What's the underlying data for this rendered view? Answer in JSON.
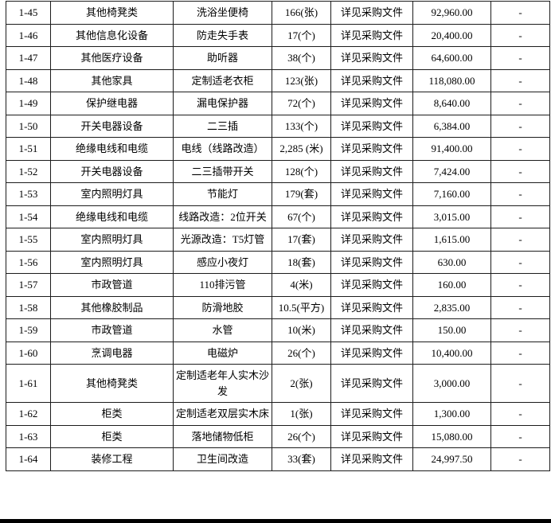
{
  "colors": {
    "background": "#ffffff",
    "grid_border": "#1c1c1c",
    "text": "#000000",
    "bottom_bar": "#000000"
  },
  "table": {
    "column_keys": [
      "id",
      "category",
      "name",
      "qty",
      "note",
      "amount",
      "extra"
    ],
    "rows": [
      {
        "id": "1-45",
        "category": "其他椅凳类",
        "name": "洗浴坐便椅",
        "qty": "166(张)",
        "note": "详见采购文件",
        "amount": "92,960.00",
        "extra": "-"
      },
      {
        "id": "1-46",
        "category": "其他信息化设备",
        "name": "防走失手表",
        "qty": "17(个)",
        "note": "详见采购文件",
        "amount": "20,400.00",
        "extra": "-"
      },
      {
        "id": "1-47",
        "category": "其他医疗设备",
        "name": "助听器",
        "qty": "38(个)",
        "note": "详见采购文件",
        "amount": "64,600.00",
        "extra": "-"
      },
      {
        "id": "1-48",
        "category": "其他家具",
        "name": "定制适老衣柜",
        "qty": "123(张)",
        "note": "详见采购文件",
        "amount": "118,080.00",
        "extra": "-"
      },
      {
        "id": "1-49",
        "category": "保护继电器",
        "name": "漏电保护器",
        "qty": "72(个)",
        "note": "详见采购文件",
        "amount": "8,640.00",
        "extra": "-"
      },
      {
        "id": "1-50",
        "category": "开关电器设备",
        "name": "二三插",
        "qty": "133(个)",
        "note": "详见采购文件",
        "amount": "6,384.00",
        "extra": "-"
      },
      {
        "id": "1-51",
        "category": "绝缘电线和电缆",
        "name": "电线（线路改造）",
        "qty": "2,285 (米)",
        "note": "详见采购文件",
        "amount": "91,400.00",
        "extra": "-"
      },
      {
        "id": "1-52",
        "category": "开关电器设备",
        "name": "二三插带开关",
        "qty": "128(个)",
        "note": "详见采购文件",
        "amount": "7,424.00",
        "extra": "-"
      },
      {
        "id": "1-53",
        "category": "室内照明灯具",
        "name": "节能灯",
        "qty": "179(套)",
        "note": "详见采购文件",
        "amount": "7,160.00",
        "extra": "-"
      },
      {
        "id": "1-54",
        "category": "绝缘电线和电缆",
        "name": "线路改造：2位开关",
        "qty": "67(个)",
        "note": "详见采购文件",
        "amount": "3,015.00",
        "extra": "-"
      },
      {
        "id": "1-55",
        "category": "室内照明灯具",
        "name": "光源改造：T5灯管",
        "qty": "17(套)",
        "note": "详见采购文件",
        "amount": "1,615.00",
        "extra": "-"
      },
      {
        "id": "1-56",
        "category": "室内照明灯具",
        "name": "感应小夜灯",
        "qty": "18(套)",
        "note": "详见采购文件",
        "amount": "630.00",
        "extra": "-"
      },
      {
        "id": "1-57",
        "category": "市政管道",
        "name": "110排污管",
        "qty": "4(米)",
        "note": "详见采购文件",
        "amount": "160.00",
        "extra": "-"
      },
      {
        "id": "1-58",
        "category": "其他橡胶制品",
        "name": "防滑地胶",
        "qty": "10.5(平方)",
        "note": "详见采购文件",
        "amount": "2,835.00",
        "extra": "-"
      },
      {
        "id": "1-59",
        "category": "市政管道",
        "name": "水管",
        "qty": "10(米)",
        "note": "详见采购文件",
        "amount": "150.00",
        "extra": "-"
      },
      {
        "id": "1-60",
        "category": "烹调电器",
        "name": "电磁炉",
        "qty": "26(个)",
        "note": "详见采购文件",
        "amount": "10,400.00",
        "extra": "-"
      },
      {
        "id": "1-61",
        "category": "其他椅凳类",
        "name": "定制适老年人实木沙发",
        "qty": "2(张)",
        "note": "详见采购文件",
        "amount": "3,000.00",
        "extra": "-"
      },
      {
        "id": "1-62",
        "category": "柜类",
        "name": "定制适老双层实木床",
        "qty": "1(张)",
        "note": "详见采购文件",
        "amount": "1,300.00",
        "extra": "-"
      },
      {
        "id": "1-63",
        "category": "柜类",
        "name": "落地储物低柜",
        "qty": "26(个)",
        "note": "详见采购文件",
        "amount": "15,080.00",
        "extra": "-"
      },
      {
        "id": "1-64",
        "category": "装修工程",
        "name": "卫生间改造",
        "qty": "33(套)",
        "note": "详见采购文件",
        "amount": "24,997.50",
        "extra": "-"
      }
    ]
  }
}
